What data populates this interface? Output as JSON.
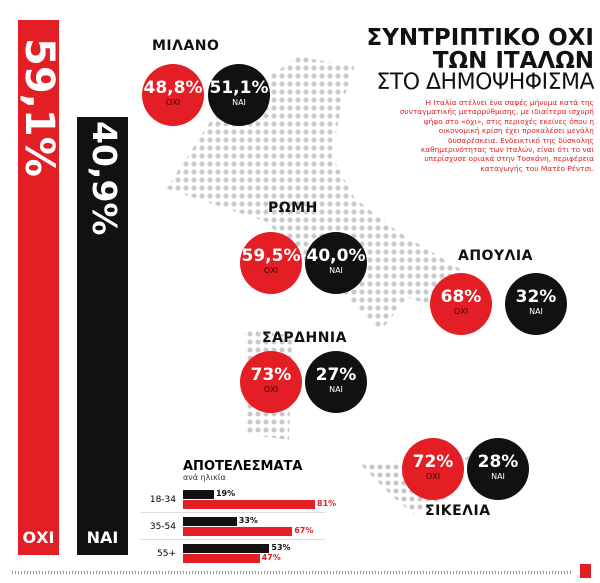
{
  "title": {
    "line1": "ΣΥΝΤΡΙΠΤΙΚΟ ΟΧΙ",
    "line2": "ΤΩΝ ΙΤΑΛΩΝ",
    "line3": "ΣΤΟ ΔΗΜΟΨΗΦΙΣΜΑ"
  },
  "intro": "Η Ιταλία στέλνει ένα σαφές μήνυμα κατά της συνταγματικής μεταρρύθμισης, με ιδιαίτερα ισχυρή ψήφο στο «όχι», στις περιοχές εκείνες όπου η οικονομική κρίση έχει προκαλέσει μεγάλη δυσαρέσκεια. Ενδεικτικό της δύσκολης καθημερινότητας των Ιταλών, είναι ότι το ναι υπερίσχυσε οριακά στην Τοσκάνη, περιφέρεια καταγωγής του Ματέο Ρέντσι.",
  "colors": {
    "no": "#e31e24",
    "yes": "#111111",
    "map_dots": "#c9c9c9"
  },
  "chart_data": [
    {
      "type": "bar",
      "title": "",
      "categories": [
        "ΟΧΙ",
        "ΝΑΙ"
      ],
      "values": [
        59.1,
        40.9
      ],
      "labels": [
        "59,1%",
        "40,9%"
      ]
    },
    {
      "type": "table",
      "title": "",
      "regions": [
        {
          "name": "ΜΙΛΑΝΟ",
          "no": "48,8%",
          "yes": "51,1%",
          "no_label": "ΟΧΙ",
          "yes_label": "ΝΑΙ"
        },
        {
          "name": "ΡΩΜΗ",
          "no": "59,5%",
          "yes": "40,0%",
          "no_label": "ΟΧΙ",
          "yes_label": "ΝΑΙ"
        },
        {
          "name": "ΑΠΟΥΛΙΑ",
          "no": "68%",
          "yes": "32%",
          "no_label": "ΟΧΙ",
          "yes_label": "ΝΑΙ"
        },
        {
          "name": "ΣΑΡΔΗΝΙΑ",
          "no": "73%",
          "yes": "27%",
          "no_label": "ΟΧΙ",
          "yes_label": "ΝΑΙ"
        },
        {
          "name": "ΣΙΚΕΛΙΑ",
          "no": "72%",
          "yes": "28%",
          "no_label": "ΟΧΙ",
          "yes_label": "ΝΑΙ"
        }
      ]
    },
    {
      "type": "bar",
      "title": "ΑΠΟΤΕΛΕΣΜΑΤΑ",
      "subtitle": "ανά ηλικία",
      "categories": [
        "18-34",
        "35-54",
        "55+"
      ],
      "series": [
        {
          "values": [
            19,
            33,
            53
          ],
          "labels": [
            "19%",
            "33%",
            "53%"
          ]
        },
        {
          "values": [
            81,
            67,
            47
          ],
          "labels": [
            "81%",
            "67%",
            "47%"
          ]
        }
      ],
      "xlim": [
        0,
        100
      ]
    }
  ]
}
